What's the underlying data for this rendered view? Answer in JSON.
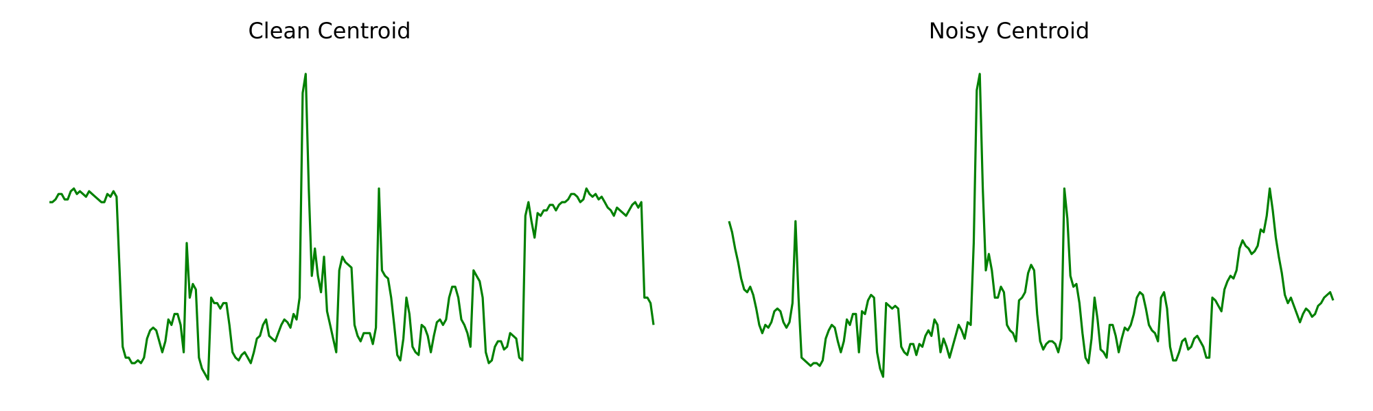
{
  "chart_data": [
    {
      "type": "line",
      "title": "Clean Centroid",
      "axes_visible": false,
      "grid": false,
      "color": "#008000",
      "ylim": [
        -0.1,
        1.05
      ],
      "y": [
        0.55,
        0.55,
        0.56,
        0.58,
        0.58,
        0.56,
        0.56,
        0.59,
        0.6,
        0.58,
        0.59,
        0.58,
        0.57,
        0.59,
        0.58,
        0.57,
        0.56,
        0.55,
        0.55,
        0.58,
        0.57,
        0.59,
        0.57,
        0.3,
        0.02,
        -0.02,
        -0.02,
        -0.04,
        -0.04,
        -0.03,
        -0.04,
        -0.02,
        0.05,
        0.08,
        0.09,
        0.08,
        0.04,
        0.0,
        0.04,
        0.12,
        0.1,
        0.14,
        0.14,
        0.1,
        0.0,
        0.4,
        0.2,
        0.25,
        0.23,
        -0.02,
        -0.06,
        -0.08,
        -0.1,
        0.2,
        0.18,
        0.18,
        0.16,
        0.18,
        0.18,
        0.1,
        0.0,
        -0.02,
        -0.03,
        -0.01,
        0.0,
        -0.02,
        -0.04,
        0.0,
        0.05,
        0.06,
        0.1,
        0.12,
        0.06,
        0.05,
        0.04,
        0.07,
        0.1,
        0.12,
        0.11,
        0.09,
        0.14,
        0.12,
        0.2,
        0.95,
        1.02,
        0.6,
        0.28,
        0.38,
        0.28,
        0.22,
        0.35,
        0.15,
        0.1,
        0.05,
        0.0,
        0.3,
        0.35,
        0.33,
        0.32,
        0.31,
        0.1,
        0.06,
        0.04,
        0.07,
        0.07,
        0.07,
        0.03,
        0.09,
        0.6,
        0.3,
        0.28,
        0.27,
        0.2,
        0.1,
        -0.01,
        -0.03,
        0.05,
        0.2,
        0.14,
        0.02,
        0.0,
        -0.01,
        0.1,
        0.09,
        0.06,
        0.0,
        0.06,
        0.11,
        0.12,
        0.1,
        0.12,
        0.2,
        0.24,
        0.24,
        0.2,
        0.12,
        0.1,
        0.07,
        0.02,
        0.3,
        0.28,
        0.26,
        0.2,
        0.0,
        -0.04,
        -0.03,
        0.02,
        0.04,
        0.04,
        0.01,
        0.02,
        0.07,
        0.06,
        0.05,
        -0.02,
        -0.03,
        0.5,
        0.55,
        0.48,
        0.42,
        0.51,
        0.5,
        0.52,
        0.52,
        0.54,
        0.54,
        0.52,
        0.54,
        0.55,
        0.55,
        0.56,
        0.58,
        0.58,
        0.57,
        0.55,
        0.56,
        0.6,
        0.58,
        0.57,
        0.58,
        0.56,
        0.57,
        0.55,
        0.53,
        0.52,
        0.5,
        0.53,
        0.52,
        0.51,
        0.5,
        0.52,
        0.54,
        0.55,
        0.53,
        0.55,
        0.2,
        0.2,
        0.18,
        0.1
      ]
    },
    {
      "type": "line",
      "title": "Noisy Centroid",
      "axes_visible": false,
      "grid": false,
      "color": "#008000",
      "ylim": [
        -0.1,
        1.05
      ],
      "y": [
        0.48,
        0.44,
        0.38,
        0.33,
        0.27,
        0.23,
        0.22,
        0.24,
        0.21,
        0.16,
        0.1,
        0.07,
        0.1,
        0.09,
        0.11,
        0.15,
        0.16,
        0.15,
        0.11,
        0.09,
        0.11,
        0.18,
        0.48,
        0.2,
        -0.02,
        -0.03,
        -0.04,
        -0.05,
        -0.04,
        -0.04,
        -0.05,
        -0.03,
        0.05,
        0.08,
        0.1,
        0.09,
        0.04,
        0.0,
        0.04,
        0.12,
        0.1,
        0.14,
        0.14,
        0.0,
        0.15,
        0.14,
        0.19,
        0.21,
        0.2,
        0.0,
        -0.06,
        -0.09,
        0.18,
        0.17,
        0.16,
        0.17,
        0.16,
        0.02,
        0.0,
        -0.01,
        0.03,
        0.03,
        -0.01,
        0.03,
        0.02,
        0.06,
        0.08,
        0.06,
        0.12,
        0.1,
        0.0,
        0.05,
        0.02,
        -0.02,
        0.02,
        0.06,
        0.1,
        0.08,
        0.05,
        0.11,
        0.1,
        0.4,
        0.96,
        1.02,
        0.6,
        0.3,
        0.36,
        0.3,
        0.2,
        0.2,
        0.24,
        0.22,
        0.1,
        0.08,
        0.07,
        0.04,
        0.19,
        0.2,
        0.22,
        0.29,
        0.32,
        0.3,
        0.14,
        0.04,
        0.01,
        0.03,
        0.04,
        0.04,
        0.03,
        0.0,
        0.05,
        0.6,
        0.49,
        0.28,
        0.24,
        0.25,
        0.18,
        0.07,
        -0.02,
        -0.04,
        0.05,
        0.2,
        0.12,
        0.01,
        0.0,
        -0.02,
        0.1,
        0.1,
        0.06,
        0.0,
        0.05,
        0.09,
        0.08,
        0.1,
        0.14,
        0.2,
        0.22,
        0.21,
        0.16,
        0.1,
        0.08,
        0.07,
        0.04,
        0.2,
        0.22,
        0.16,
        0.02,
        -0.03,
        -0.03,
        0.0,
        0.04,
        0.05,
        0.01,
        0.02,
        0.05,
        0.06,
        0.04,
        0.02,
        -0.02,
        -0.02,
        0.2,
        0.19,
        0.17,
        0.15,
        0.23,
        0.26,
        0.28,
        0.27,
        0.3,
        0.38,
        0.41,
        0.39,
        0.38,
        0.36,
        0.37,
        0.39,
        0.45,
        0.44,
        0.5,
        0.6,
        0.52,
        0.42,
        0.35,
        0.29,
        0.21,
        0.18,
        0.2,
        0.17,
        0.14,
        0.11,
        0.14,
        0.16,
        0.15,
        0.13,
        0.14,
        0.17,
        0.18,
        0.2,
        0.21,
        0.22,
        0.19
      ]
    }
  ]
}
